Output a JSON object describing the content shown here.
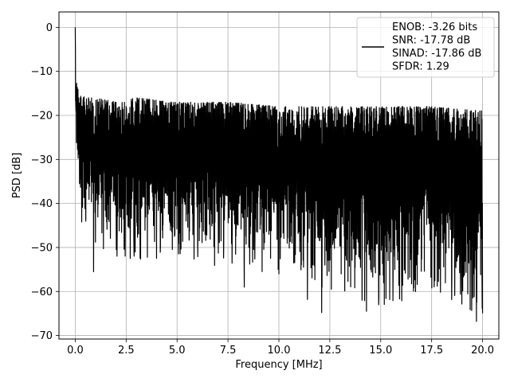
{
  "chart_data": {
    "type": "line",
    "xlabel": "Frequency [MHz]",
    "ylabel": "PSD [dB]",
    "xlim": [
      -0.8,
      20.8
    ],
    "ylim": [
      -70.8,
      3.5
    ],
    "xticks": [
      0.0,
      2.5,
      5.0,
      7.5,
      10.0,
      12.5,
      15.0,
      17.5,
      20.0
    ],
    "xtick_labels": [
      "0.0",
      "2.5",
      "5.0",
      "7.5",
      "10.0",
      "12.5",
      "15.0",
      "17.5",
      "20.0"
    ],
    "yticks": [
      0,
      -10,
      -20,
      -30,
      -40,
      -50,
      -60,
      -70
    ],
    "ytick_labels": [
      "0",
      "−10",
      "−20",
      "−30",
      "−40",
      "−50",
      "−60",
      "−70"
    ],
    "grid": true,
    "legend_position": "top-right",
    "series": [
      {
        "color": "#000000",
        "description_points": {
          "x": [
            0.0,
            0.02,
            0.05,
            0.1,
            0.2,
            0.3,
            0.5,
            1.0,
            2.0,
            3.0,
            5.0,
            7.5,
            10.0,
            12.5,
            15.0,
            17.5,
            20.0
          ],
          "upper_envelope": [
            0.0,
            -8,
            -12,
            -12,
            -17,
            -15,
            -16,
            -16,
            -17,
            -16,
            -17,
            -17,
            -18,
            -18,
            -18,
            -18,
            -19
          ],
          "lower_envelope": [
            0.0,
            -25,
            -33,
            -38,
            -42,
            -46,
            -46,
            -50,
            -52,
            -53,
            -52,
            -55,
            -56,
            -60,
            -64,
            -60,
            -66
          ]
        },
        "notable_minima": [
          {
            "x": 0.9,
            "y": -55.5
          },
          {
            "x": 2.7,
            "y": -52.5
          },
          {
            "x": 8.3,
            "y": -59.0
          },
          {
            "x": 10.0,
            "y": -56.0
          },
          {
            "x": 11.4,
            "y": -61.8
          },
          {
            "x": 12.1,
            "y": -64.8
          },
          {
            "x": 14.3,
            "y": -64.5
          },
          {
            "x": 14.9,
            "y": -63.0
          },
          {
            "x": 19.7,
            "y": -66.8
          }
        ]
      }
    ],
    "legend": {
      "lines": [
        "ENOB: -3.26 bits",
        "SNR: -17.78 dB",
        "SINAD: -17.86 dB",
        "SFDR: 1.29"
      ]
    }
  }
}
